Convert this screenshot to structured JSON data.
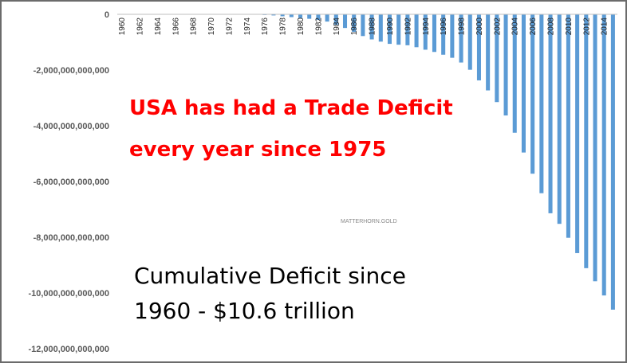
{
  "chart_data": {
    "type": "bar",
    "title": "",
    "xlabel": "",
    "ylabel": "",
    "ylim": [
      -12000000000000,
      0
    ],
    "yticks": [
      "0",
      "-2,000,000,000,000",
      "-4,000,000,000,000",
      "-6,000,000,000,000",
      "-8,000,000,000,000",
      "-10,000,000,000,000",
      "-12,000,000,000,000"
    ],
    "xtick_labels": [
      "1960",
      "1962",
      "1964",
      "1966",
      "1968",
      "1970",
      "1972",
      "1974",
      "1976",
      "1978",
      "1980",
      "1982",
      "1984",
      "1986",
      "1988",
      "1990",
      "1992",
      "1994",
      "1996",
      "1998",
      "2000",
      "2002",
      "2004",
      "2006",
      "2008",
      "2010",
      "2012",
      "2014"
    ],
    "series_color": "#5b9bd5",
    "grid": false,
    "categories": [
      "1960",
      "1961",
      "1962",
      "1963",
      "1964",
      "1965",
      "1966",
      "1967",
      "1968",
      "1969",
      "1970",
      "1971",
      "1972",
      "1973",
      "1974",
      "1975",
      "1976",
      "1977",
      "1978",
      "1979",
      "1980",
      "1981",
      "1982",
      "1983",
      "1984",
      "1985",
      "1986",
      "1987",
      "1988",
      "1989",
      "1990",
      "1991",
      "1992",
      "1993",
      "1994",
      "1995",
      "1996",
      "1997",
      "1998",
      "1999",
      "2000",
      "2001",
      "2002",
      "2003",
      "2004",
      "2005",
      "2006",
      "2007",
      "2008",
      "2009",
      "2010",
      "2011",
      "2012",
      "2013",
      "2014",
      "2015"
    ],
    "values": [
      0,
      0,
      0,
      0,
      0,
      0,
      0,
      0,
      0,
      0,
      0,
      0,
      0,
      0,
      0,
      0,
      -10000000000,
      -40000000000,
      -70000000000,
      -100000000000,
      -130000000000,
      -160000000000,
      -200000000000,
      -260000000000,
      -370000000000,
      -490000000000,
      -630000000000,
      -780000000000,
      -900000000000,
      -980000000000,
      -1060000000000,
      -1090000000000,
      -1110000000000,
      -1180000000000,
      -1270000000000,
      -1350000000000,
      -1450000000000,
      -1560000000000,
      -1730000000000,
      -1990000000000,
      -2370000000000,
      -2730000000000,
      -3150000000000,
      -3630000000000,
      -4250000000000,
      -4960000000000,
      -5720000000000,
      -6420000000000,
      -7140000000000,
      -7520000000000,
      -8020000000000,
      -8570000000000,
      -9110000000000,
      -9580000000000,
      -10090000000000,
      -10600000000000
    ]
  },
  "annotations": {
    "headline_line1": "USA has had a Trade Deficit",
    "headline_line2": "every year since 1975",
    "note_line1": "Cumulative Deficit since",
    "note_line2": "1960 - $10.6 trillion",
    "watermark": "MATTERHORN.GOLD"
  }
}
